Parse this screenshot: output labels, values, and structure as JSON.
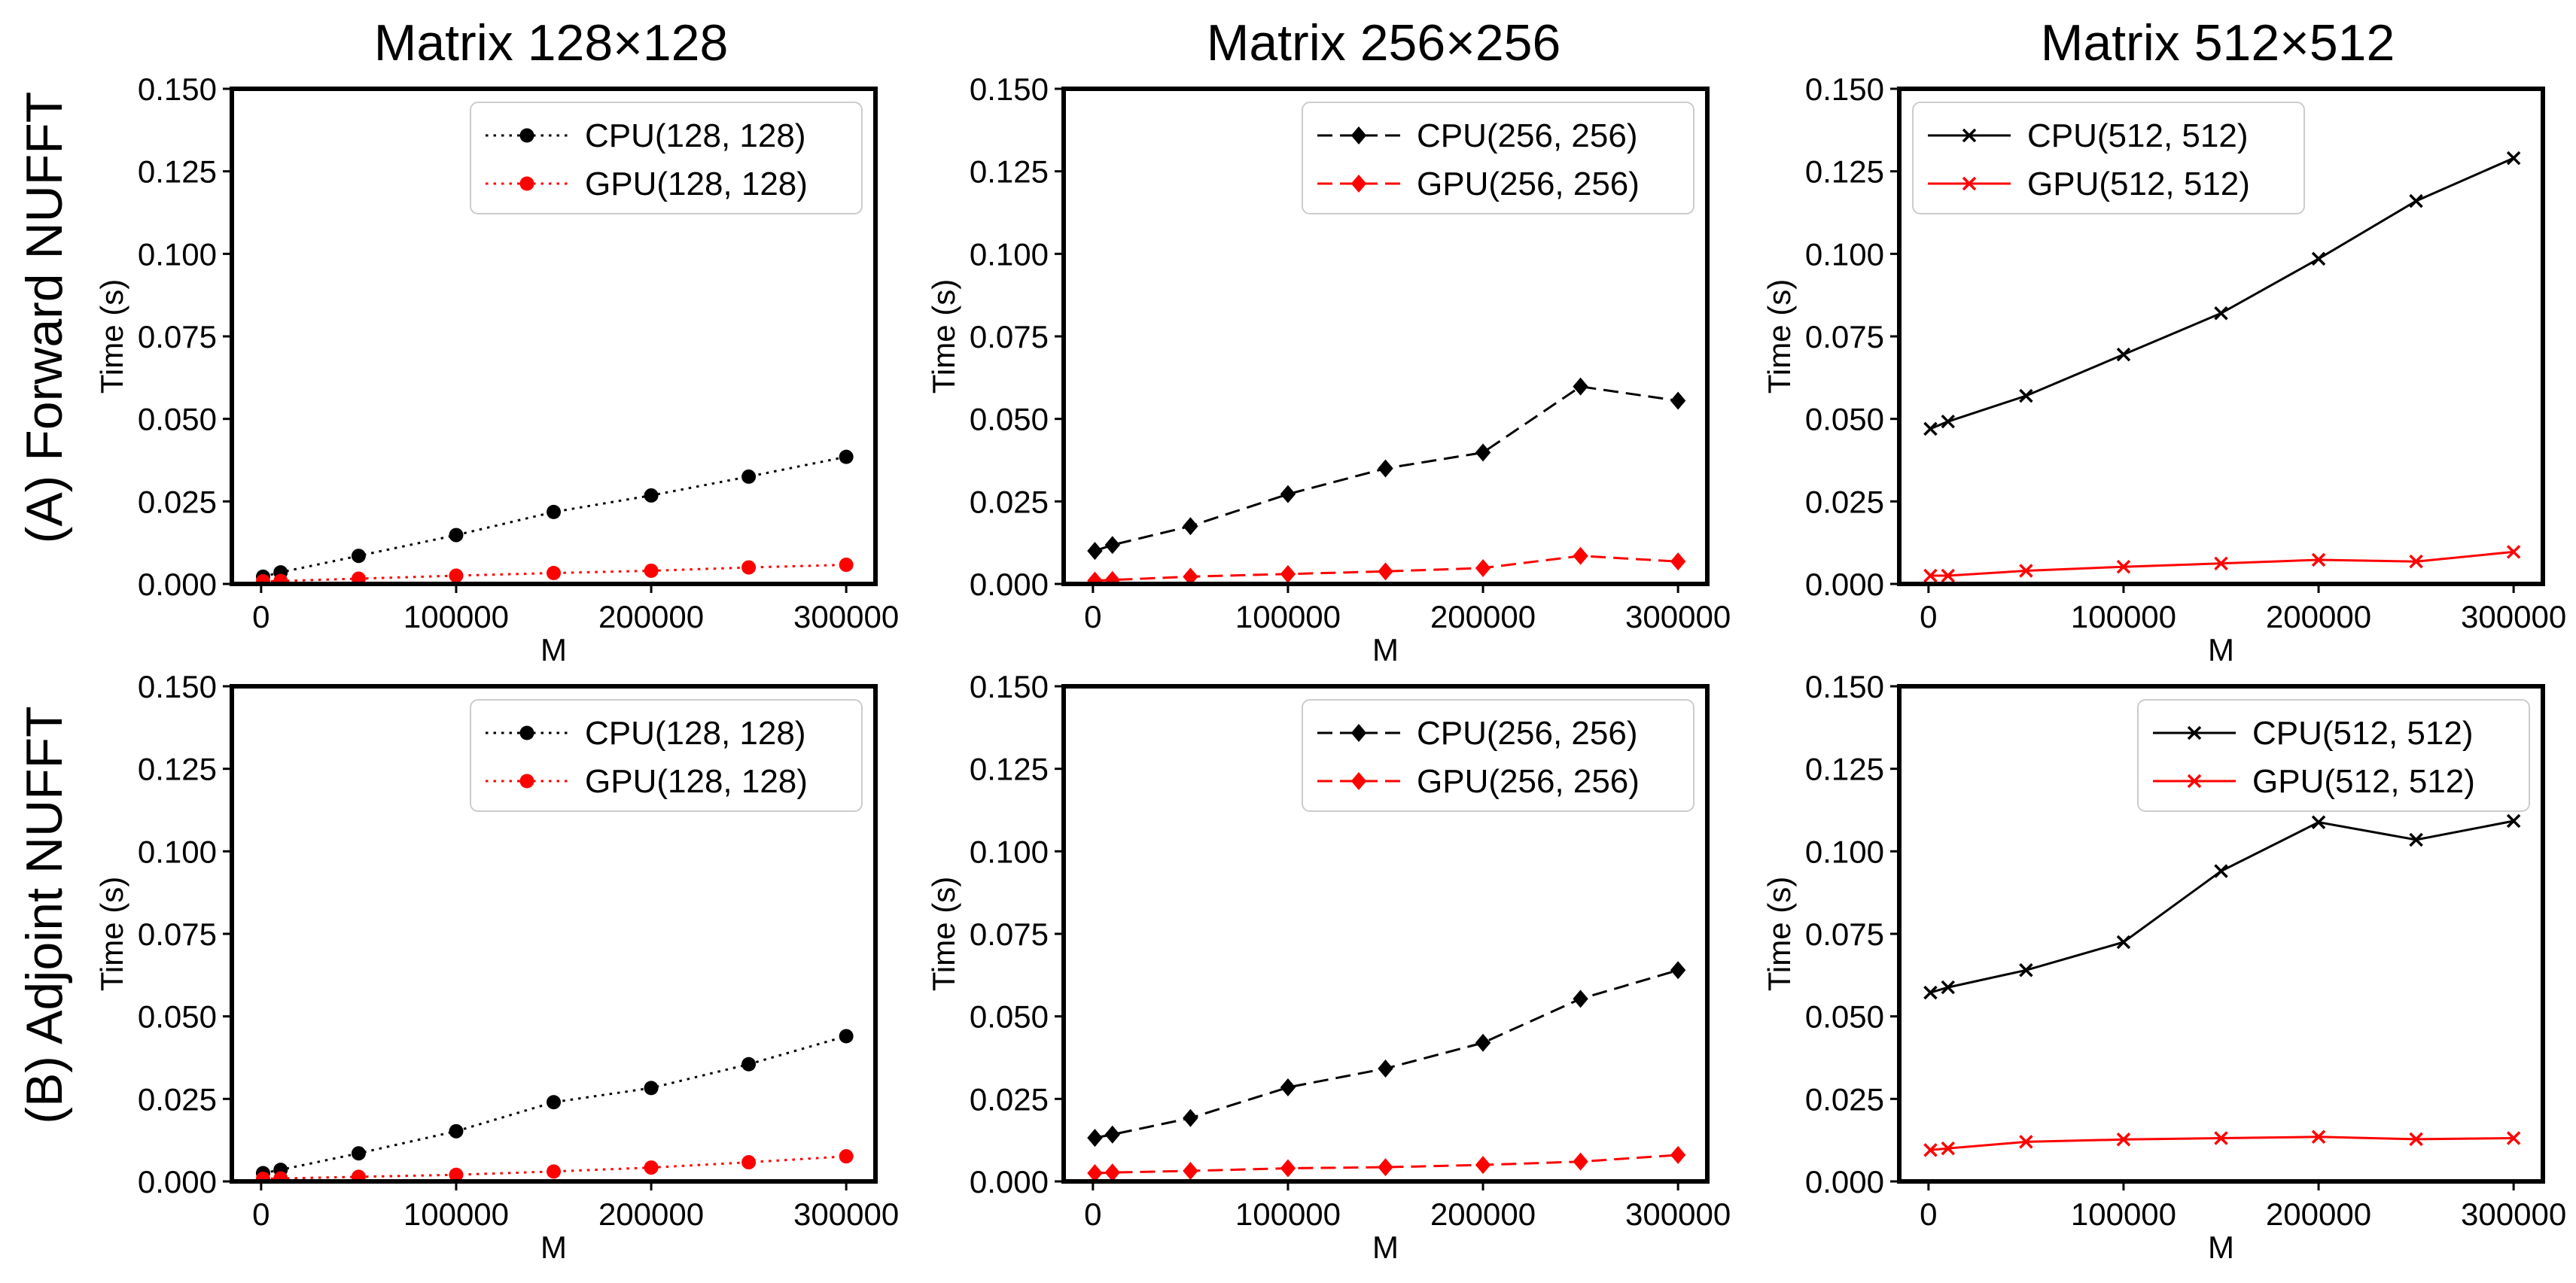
{
  "figure": {
    "column_titles": [
      "Matrix 128×128",
      "Matrix 256×256",
      "Matrix 512×512"
    ],
    "row_labels": [
      "(A) Forward NUFFT",
      "(B) Adjoint NUFFT"
    ],
    "colors": {
      "cpu": "#000000",
      "gpu": "#ff0000",
      "axis": "#000000",
      "background": "#ffffff"
    }
  },
  "chart_data": [
    {
      "type": "line",
      "row": 0,
      "col": 0,
      "xlabel": "M",
      "ylabel": "Time (s)",
      "xlim": [
        -15000,
        315000
      ],
      "ylim": [
        0,
        0.15
      ],
      "xticks": [
        0,
        100000,
        200000,
        300000
      ],
      "xtick_labels": [
        "0",
        "100000",
        "200000",
        "300000"
      ],
      "yticks": [
        0,
        0.025,
        0.05,
        0.075,
        0.1,
        0.125,
        0.15
      ],
      "ytick_labels": [
        "0.000",
        "0.025",
        "0.050",
        "0.075",
        "0.100",
        "0.125",
        "0.150"
      ],
      "legend_position": "top-right",
      "x": [
        1000,
        10000,
        50000,
        100000,
        150000,
        200000,
        250000,
        300000
      ],
      "series": [
        {
          "name": "CPU(128, 128)",
          "color": "#000000",
          "linestyle": "dotted",
          "marker": "circle",
          "values": [
            0.0022,
            0.0035,
            0.0085,
            0.0148,
            0.0218,
            0.0268,
            0.0325,
            0.0385
          ]
        },
        {
          "name": "GPU(128, 128)",
          "color": "#ff0000",
          "linestyle": "dotted",
          "marker": "circle",
          "values": [
            0.0008,
            0.0009,
            0.0016,
            0.0025,
            0.0033,
            0.004,
            0.005,
            0.0058
          ]
        }
      ]
    },
    {
      "type": "line",
      "row": 0,
      "col": 1,
      "xlabel": "M",
      "ylabel": "Time (s)",
      "xlim": [
        -15000,
        315000
      ],
      "ylim": [
        0,
        0.15
      ],
      "xticks": [
        0,
        100000,
        200000,
        300000
      ],
      "xtick_labels": [
        "0",
        "100000",
        "200000",
        "300000"
      ],
      "yticks": [
        0,
        0.025,
        0.05,
        0.075,
        0.1,
        0.125,
        0.15
      ],
      "ytick_labels": [
        "0.000",
        "0.025",
        "0.050",
        "0.075",
        "0.100",
        "0.125",
        "0.150"
      ],
      "legend_position": "top-right",
      "x": [
        1000,
        10000,
        50000,
        100000,
        150000,
        200000,
        250000,
        300000
      ],
      "series": [
        {
          "name": "CPU(256, 256)",
          "color": "#000000",
          "linestyle": "dashed",
          "marker": "diamond",
          "values": [
            0.01,
            0.0118,
            0.0175,
            0.0272,
            0.035,
            0.0398,
            0.0598,
            0.0555
          ]
        },
        {
          "name": "GPU(256, 256)",
          "color": "#ff0000",
          "linestyle": "dashed",
          "marker": "diamond",
          "values": [
            0.001,
            0.0012,
            0.0022,
            0.003,
            0.0038,
            0.0048,
            0.0085,
            0.0068
          ]
        }
      ]
    },
    {
      "type": "line",
      "row": 0,
      "col": 2,
      "xlabel": "M",
      "ylabel": "Time (s)",
      "xlim": [
        -15000,
        315000
      ],
      "ylim": [
        0,
        0.15
      ],
      "xticks": [
        0,
        100000,
        200000,
        300000
      ],
      "xtick_labels": [
        "0",
        "100000",
        "200000",
        "300000"
      ],
      "yticks": [
        0,
        0.025,
        0.05,
        0.075,
        0.1,
        0.125,
        0.15
      ],
      "ytick_labels": [
        "0.000",
        "0.025",
        "0.050",
        "0.075",
        "0.100",
        "0.125",
        "0.150"
      ],
      "legend_position": "top-left",
      "x": [
        1000,
        10000,
        50000,
        100000,
        150000,
        200000,
        250000,
        300000
      ],
      "series": [
        {
          "name": "CPU(512, 512)",
          "color": "#000000",
          "linestyle": "solid",
          "marker": "x",
          "values": [
            0.047,
            0.0492,
            0.057,
            0.0695,
            0.082,
            0.0985,
            0.116,
            0.129
          ]
        },
        {
          "name": "GPU(512, 512)",
          "color": "#ff0000",
          "linestyle": "solid",
          "marker": "x",
          "values": [
            0.0025,
            0.0025,
            0.004,
            0.0052,
            0.0062,
            0.0073,
            0.0068,
            0.0097
          ]
        }
      ]
    },
    {
      "type": "line",
      "row": 1,
      "col": 0,
      "xlabel": "M",
      "ylabel": "Time (s)",
      "xlim": [
        -15000,
        315000
      ],
      "ylim": [
        0,
        0.15
      ],
      "xticks": [
        0,
        100000,
        200000,
        300000
      ],
      "xtick_labels": [
        "0",
        "100000",
        "200000",
        "300000"
      ],
      "yticks": [
        0,
        0.025,
        0.05,
        0.075,
        0.1,
        0.125,
        0.15
      ],
      "ytick_labels": [
        "0.000",
        "0.025",
        "0.050",
        "0.075",
        "0.100",
        "0.125",
        "0.150"
      ],
      "legend_position": "top-right",
      "x": [
        1000,
        10000,
        50000,
        100000,
        150000,
        200000,
        250000,
        300000
      ],
      "series": [
        {
          "name": "CPU(128, 128)",
          "color": "#000000",
          "linestyle": "dotted",
          "marker": "circle",
          "values": [
            0.0025,
            0.0035,
            0.0085,
            0.0152,
            0.024,
            0.0283,
            0.0355,
            0.044
          ]
        },
        {
          "name": "GPU(128, 128)",
          "color": "#ff0000",
          "linestyle": "dotted",
          "marker": "circle",
          "values": [
            0.0008,
            0.0009,
            0.0014,
            0.002,
            0.003,
            0.0042,
            0.0058,
            0.0076
          ]
        }
      ]
    },
    {
      "type": "line",
      "row": 1,
      "col": 1,
      "xlabel": "M",
      "ylabel": "Time (s)",
      "xlim": [
        -15000,
        315000
      ],
      "ylim": [
        0,
        0.15
      ],
      "xticks": [
        0,
        100000,
        200000,
        300000
      ],
      "xtick_labels": [
        "0",
        "100000",
        "200000",
        "300000"
      ],
      "yticks": [
        0,
        0.025,
        0.05,
        0.075,
        0.1,
        0.125,
        0.15
      ],
      "ytick_labels": [
        "0.000",
        "0.025",
        "0.050",
        "0.075",
        "0.100",
        "0.125",
        "0.150"
      ],
      "legend_position": "top-right",
      "x": [
        1000,
        10000,
        50000,
        100000,
        150000,
        200000,
        250000,
        300000
      ],
      "series": [
        {
          "name": "CPU(256, 256)",
          "color": "#000000",
          "linestyle": "dashed",
          "marker": "diamond",
          "values": [
            0.0132,
            0.0142,
            0.0192,
            0.0285,
            0.0342,
            0.042,
            0.0553,
            0.064
          ]
        },
        {
          "name": "GPU(256, 256)",
          "color": "#ff0000",
          "linestyle": "dashed",
          "marker": "diamond",
          "values": [
            0.0025,
            0.0027,
            0.0032,
            0.004,
            0.0043,
            0.005,
            0.006,
            0.008
          ]
        }
      ]
    },
    {
      "type": "line",
      "row": 1,
      "col": 2,
      "xlabel": "M",
      "ylabel": "Time (s)",
      "xlim": [
        -15000,
        315000
      ],
      "ylim": [
        0,
        0.15
      ],
      "xticks": [
        0,
        100000,
        200000,
        300000
      ],
      "xtick_labels": [
        "0",
        "100000",
        "200000",
        "300000"
      ],
      "yticks": [
        0,
        0.025,
        0.05,
        0.075,
        0.1,
        0.125,
        0.15
      ],
      "ytick_labels": [
        "0.000",
        "0.025",
        "0.050",
        "0.075",
        "0.100",
        "0.125",
        "0.150"
      ],
      "legend_position": "top-right",
      "x": [
        1000,
        10000,
        50000,
        100000,
        150000,
        200000,
        250000,
        300000
      ],
      "series": [
        {
          "name": "CPU(512, 512)",
          "color": "#000000",
          "linestyle": "solid",
          "marker": "x",
          "values": [
            0.0572,
            0.0588,
            0.064,
            0.0725,
            0.094,
            0.1088,
            0.1035,
            0.1092
          ]
        },
        {
          "name": "GPU(512, 512)",
          "color": "#ff0000",
          "linestyle": "solid",
          "marker": "x",
          "values": [
            0.0095,
            0.01,
            0.012,
            0.0127,
            0.0131,
            0.0135,
            0.0128,
            0.0131
          ]
        }
      ]
    }
  ]
}
